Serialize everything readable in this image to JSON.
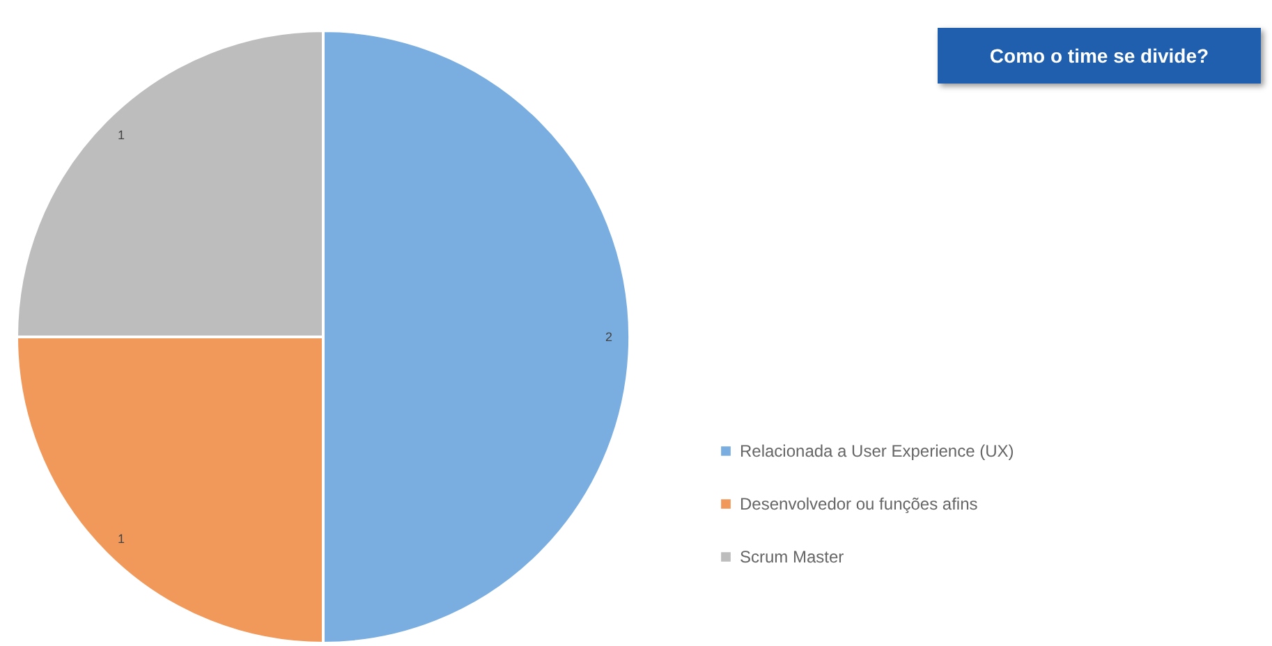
{
  "chart_data": {
    "type": "pie",
    "title": "Como o time se divide?",
    "categories": [
      "Relacionada a User Experience (UX)",
      "Desenvolvedor ou funções afins",
      "Scrum Master"
    ],
    "values": [
      2,
      1,
      1
    ],
    "colors": [
      "#7aaee0",
      "#f0995a",
      "#bdbdbd"
    ],
    "data_labels": true,
    "legend": "bottom right"
  }
}
